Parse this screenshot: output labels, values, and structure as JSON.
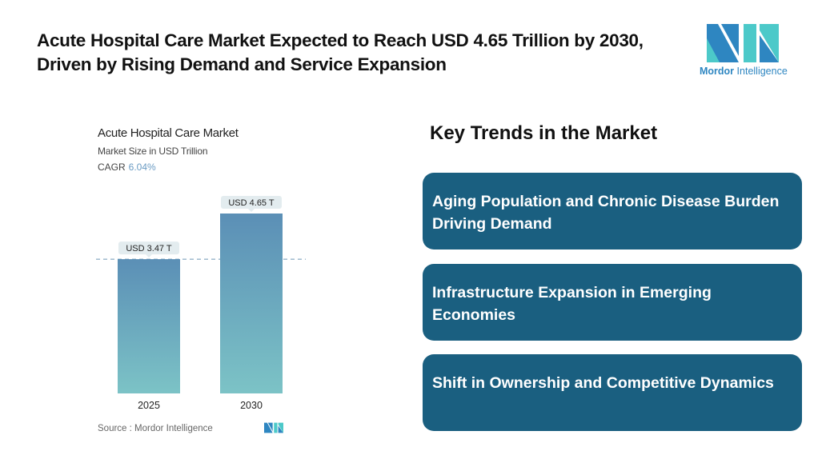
{
  "header": {
    "headline": "Acute Hospital Care Market Expected to Reach USD 4.65 Trillion by 2030, Driven by Rising Demand and Service Expansion",
    "logo_brand_bold": "Mordor",
    "logo_brand_light": "Intelligence"
  },
  "chart": {
    "title": "Acute Hospital Care Market",
    "subtitle": "Market Size in USD Trillion",
    "cagr_label": "CAGR",
    "cagr_value": "6.04%",
    "source": "Source :  Mordor Intelligence"
  },
  "chart_data": {
    "type": "bar",
    "title": "Acute Hospital Care Market",
    "ylabel": "Market Size in USD Trillion",
    "categories": [
      "2025",
      "2030"
    ],
    "values": [
      3.47,
      4.65
    ],
    "data_labels": [
      "USD 3.47 T",
      "USD 4.65 T"
    ],
    "ylim": [
      0,
      4.65
    ],
    "grid": false,
    "reference_line": 3.47,
    "colors": {
      "bar_top": "#5b8fb6",
      "bar_bottom": "#7cc3c6",
      "label_bg": "#e3ecef"
    }
  },
  "trends": {
    "title": "Key Trends in the Market",
    "items": [
      "Aging Population and Chronic Disease Burden Driving Demand",
      "Infrastructure Expansion in Emerging Economies",
      "Shift in Ownership and Competitive Dynamics"
    ],
    "box_color": "#1a5f80"
  }
}
